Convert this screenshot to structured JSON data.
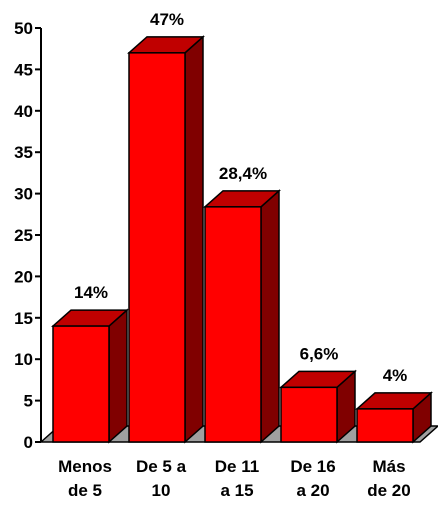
{
  "chart_data": {
    "type": "bar",
    "style": "3d",
    "categories": [
      [
        "Menos",
        "de 5"
      ],
      [
        "De 5 a",
        "10"
      ],
      [
        "De 11",
        "a 15"
      ],
      [
        "De 16",
        "a 20"
      ],
      [
        "Más",
        "de 20"
      ]
    ],
    "values": [
      14,
      47,
      28.4,
      6.6,
      4
    ],
    "data_labels": [
      "14%",
      "47%",
      "28,4%",
      "6,6%",
      "4%"
    ],
    "yticks": [
      "0",
      "5",
      "10",
      "15",
      "20",
      "25",
      "30",
      "35",
      "40",
      "45",
      "50"
    ],
    "ylim": [
      0,
      50
    ],
    "grid": false,
    "legend": false,
    "colors": {
      "bar_front": "#ff0000",
      "bar_side": "#800000",
      "bar_top": "#c00000",
      "floor": "#a0a0a0",
      "axis": "#000000"
    }
  }
}
